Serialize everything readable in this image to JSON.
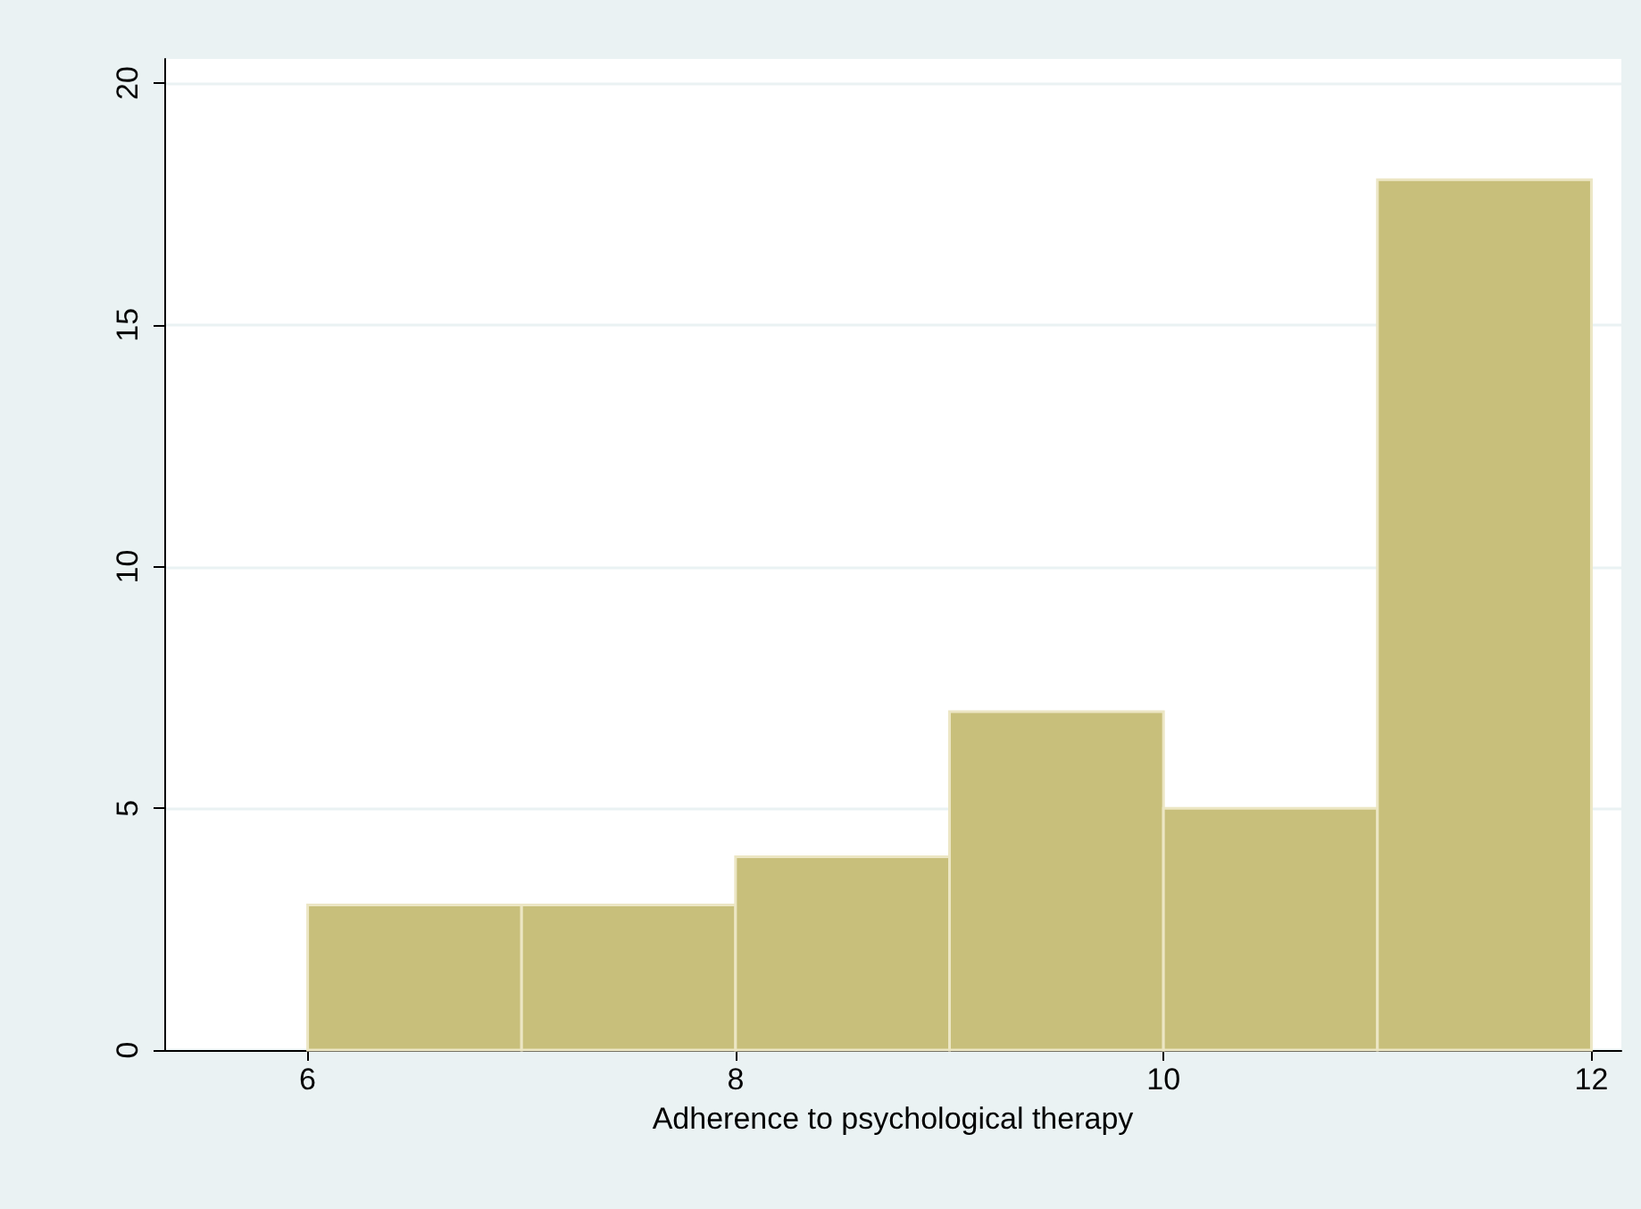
{
  "chart_data": {
    "type": "histogram",
    "xlabel": "Adherence to psychological therapy",
    "bins": [
      6,
      7,
      8,
      9,
      10,
      11,
      12
    ],
    "values": [
      3,
      3,
      4,
      7,
      5,
      18
    ],
    "color": "#c8bf7b",
    "xlim": [
      5.33,
      12.14
    ],
    "xticks": [
      6,
      8,
      10,
      12
    ],
    "ylim": [
      0,
      20.5
    ],
    "yticks": [
      0,
      5,
      10,
      15,
      20
    ],
    "grid": "y"
  }
}
